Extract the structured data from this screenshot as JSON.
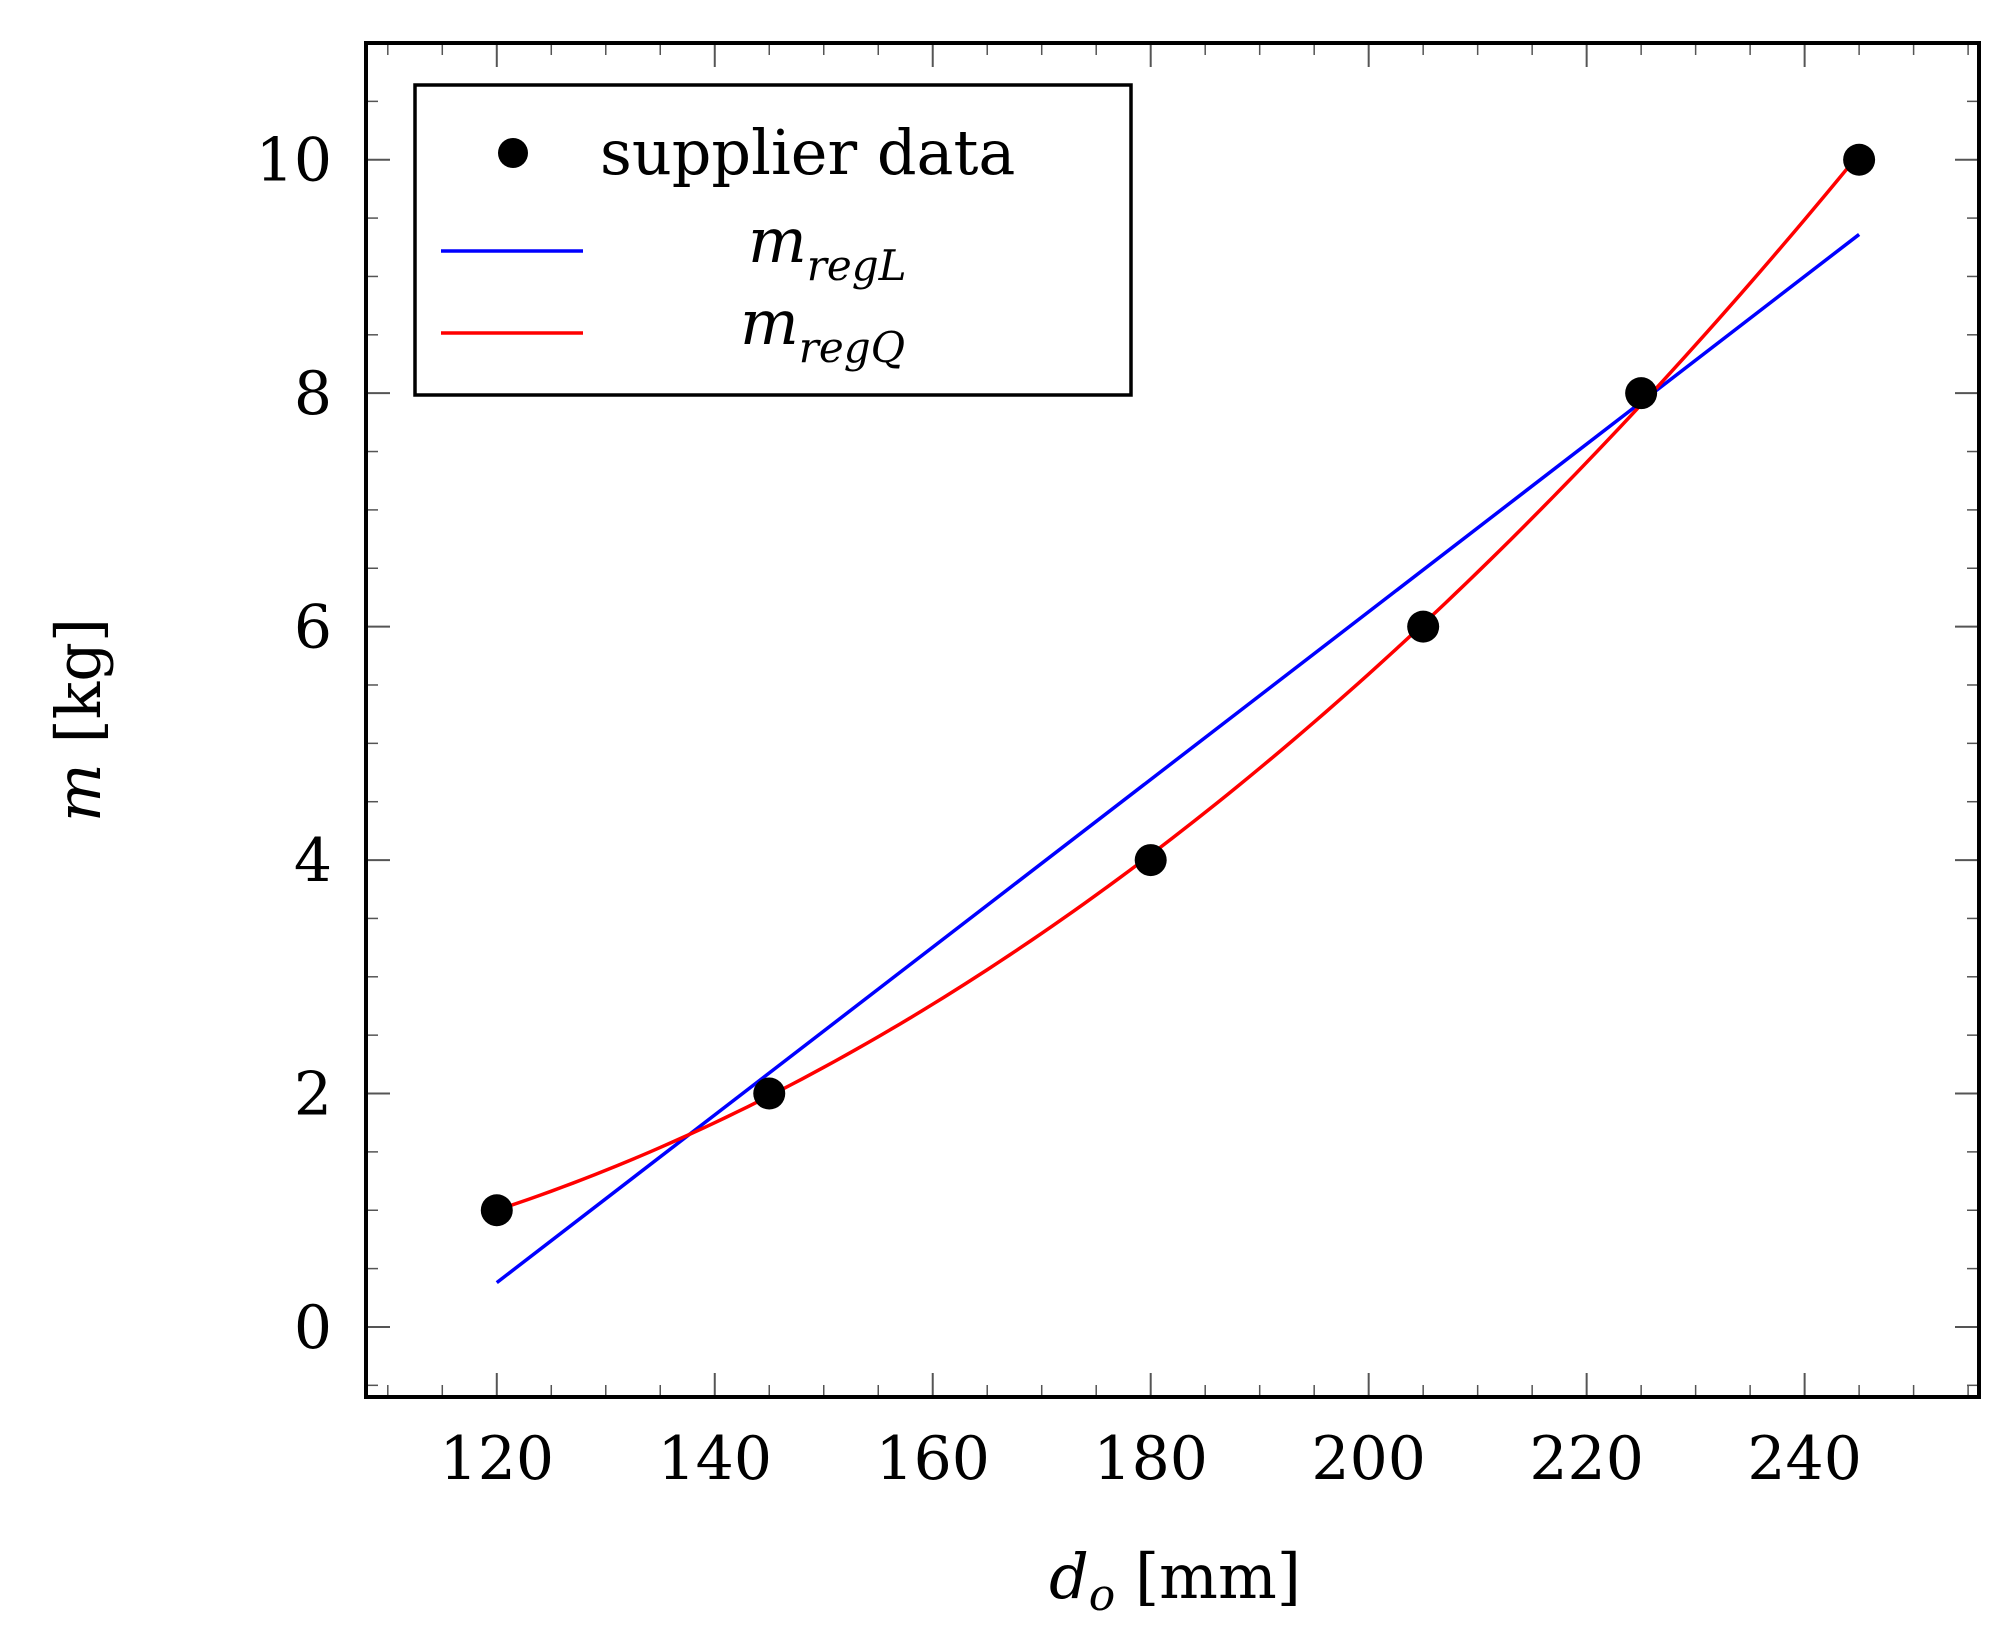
{
  "chart_data": {
    "type": "line",
    "title": "",
    "x": [
      120,
      145,
      180,
      205,
      225,
      245
    ],
    "series": [
      {
        "name": "supplier data",
        "kind": "scatter",
        "color": "#000000",
        "x": [
          120,
          145,
          180,
          205,
          225,
          245
        ],
        "values": [
          1,
          2,
          4,
          6,
          8,
          10
        ]
      },
      {
        "name": "m_regL",
        "kind": "line",
        "color": "#0000ff",
        "x": [
          120,
          245
        ],
        "values": [
          0.38,
          9.36
        ]
      },
      {
        "name": "m_regQ",
        "kind": "curve",
        "color": "#ff0000",
        "fit": "quadratic",
        "x": [
          120,
          245
        ]
      }
    ],
    "xlabel": "d_o [mm]",
    "ylabel": "m [kg]",
    "xlim": [
      108,
      256
    ],
    "ylim": [
      -0.6,
      11
    ],
    "xticks": [
      120,
      140,
      160,
      180,
      200,
      220,
      240
    ],
    "yticks": [
      0,
      2,
      4,
      6,
      8,
      10
    ],
    "legend_position": "top-left",
    "grid": false
  },
  "legend": {
    "scatter_label": "supplier data",
    "linear_main": "m",
    "linear_sub": "regL",
    "quad_main": "m",
    "quad_sub": "regQ"
  },
  "axis": {
    "x_var": "d",
    "x_sub": "o",
    "x_unit": " [mm]",
    "y_var": "m",
    "y_unit": " [kg]"
  }
}
